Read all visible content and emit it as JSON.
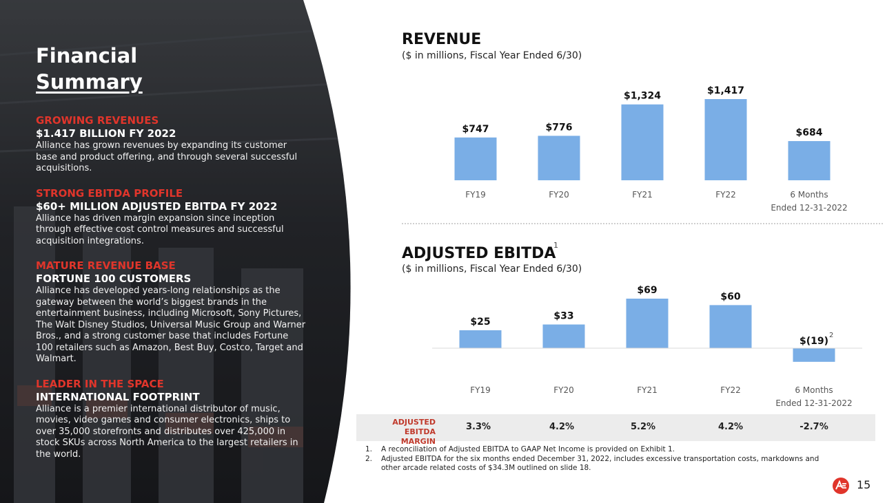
{
  "left": {
    "title_line1": "Financial",
    "title_line2": "Summary",
    "sections": [
      {
        "head": "GROWING REVENUES",
        "sub": "$1.417 BILLION FY 2022",
        "body": "Alliance has grown revenues by expanding its customer base and product offering, and through several successful acquisitions."
      },
      {
        "head": "STRONG EBITDA PROFILE",
        "sub": "$60+ MILLION ADJUSTED EBITDA FY 2022",
        "body": "Alliance has driven margin expansion since inception through effective cost control measures and successful acquisition integrations."
      },
      {
        "head": "MATURE REVENUE BASE",
        "sub": "FORTUNE 100 CUSTOMERS",
        "body": "Alliance has developed years-long relationships as the gateway between the world’s biggest brands in the entertainment business, including Microsoft, Sony Pictures, The Walt Disney Studios, Universal Music Group and Warner Bros., and a strong customer base that includes Fortune 100 retailers such as Amazon, Best Buy, Costco, Target and Walmart."
      },
      {
        "head": "LEADER IN THE SPACE",
        "sub": "INTERNATIONAL FOOTPRINT",
        "body": "Alliance is a premier international distributor of music, movies, video games and consumer electronics, ships to over 35,000 storefronts and distributes over 425,000 in stock SKUs across North America to the largest retailers in the world."
      }
    ]
  },
  "chart_data": [
    {
      "type": "bar",
      "title": "REVENUE",
      "subtitle": "($ in millions, Fiscal Year Ended 6/30)",
      "categories": [
        "FY19",
        "FY20",
        "FY21",
        "FY22",
        "6 Months Ended 12-31-2022"
      ],
      "category_lines": [
        [
          "FY19"
        ],
        [
          "FY20"
        ],
        [
          "FY21"
        ],
        [
          "FY22"
        ],
        [
          "6 Months",
          "Ended 12-31-2022"
        ]
      ],
      "values": [
        747,
        776,
        1324,
        1417,
        684
      ],
      "labels": [
        "$747",
        "$776",
        "$1,324",
        "$1,417",
        "$684"
      ],
      "color": "#7aaee6"
    },
    {
      "type": "bar",
      "title": "ADJUSTED EBITDA",
      "title_sup": "1",
      "subtitle": "($ in millions, Fiscal Year Ended 6/30)",
      "categories": [
        "FY19",
        "FY20",
        "FY21",
        "FY22",
        "6 Months Ended 12-31-2022"
      ],
      "category_lines": [
        [
          "FY19"
        ],
        [
          "FY20"
        ],
        [
          "FY21"
        ],
        [
          "FY22"
        ],
        [
          "6 Months",
          "Ended 12-31-2022"
        ]
      ],
      "values": [
        25,
        33,
        69,
        60,
        -19
      ],
      "labels": [
        "$25",
        "$33",
        "$69",
        "$60",
        "$(19)"
      ],
      "label_sup": [
        "",
        "",
        "",
        "",
        "2"
      ],
      "color": "#7aaee6"
    }
  ],
  "margin": {
    "label_line1": "ADJUSTED",
    "label_line2": "EBITDA MARGIN",
    "values": [
      "3.3%",
      "4.2%",
      "5.2%",
      "4.2%",
      "-2.7%"
    ]
  },
  "footnotes": [
    {
      "n": "1.",
      "text": "A reconciliation of Adjusted EBITDA to GAAP Net Income is provided on Exhibit 1."
    },
    {
      "n": "2.",
      "text": "Adjusted EBITDA for the six months ended December 31, 2022, includes excessive transportation costs, markdowns and other arcade related costs of $34.3M outlined on slide 18."
    }
  ],
  "page_number": "15",
  "colors": {
    "accent": "#e0352b",
    "bar": "#7aaee6"
  }
}
